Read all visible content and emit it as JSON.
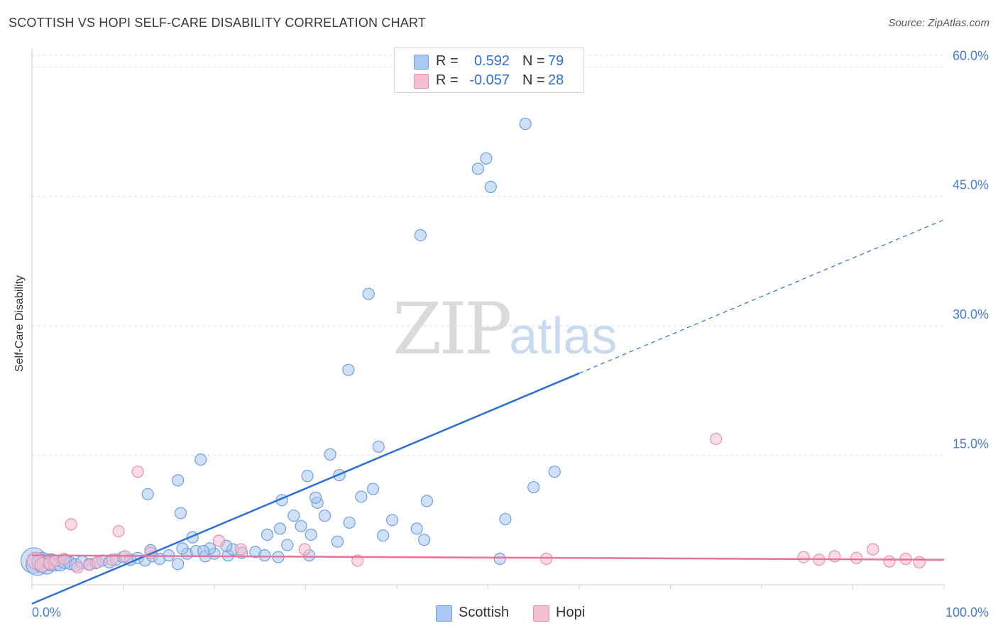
{
  "header": {
    "title": "SCOTTISH VS HOPI SELF-CARE DISABILITY CORRELATION CHART",
    "source": "Source: ZipAtlas.com"
  },
  "watermark": {
    "zip": "ZIP",
    "atlas": "atlas"
  },
  "colors": {
    "scottish_fill": "#aac8f0",
    "scottish_stroke": "#6d9ee0",
    "scottish_line": "#2a6fd6",
    "hopi_fill": "#f6bfd0",
    "hopi_stroke": "#e88fae",
    "hopi_line": "#e8729b",
    "grid": "#dddddd",
    "tick_text": "#4a7ccf"
  },
  "stats": [
    {
      "series": "Scottish",
      "r_label": "R =",
      "r_value": "0.592",
      "n_label": "N =",
      "n_value": "79"
    },
    {
      "series": "Hopi",
      "r_label": "R =",
      "r_value": "-0.057",
      "n_label": "N =",
      "n_value": "28"
    }
  ],
  "legend": [
    {
      "label": "Scottish"
    },
    {
      "label": "Hopi"
    }
  ],
  "chart_data": {
    "type": "scatter",
    "title": "SCOTTISH VS HOPI SELF-CARE DISABILITY CORRELATION CHART",
    "xlabel": "",
    "ylabel": "Self-Care Disability",
    "xlim": [
      0,
      100
    ],
    "ylim": [
      0,
      62
    ],
    "x_tick_labels": [
      "0.0%",
      "100.0%"
    ],
    "y_ticks": [
      15,
      30,
      45,
      60
    ],
    "y_tick_labels": [
      "15.0%",
      "30.0%",
      "45.0%",
      "60.0%"
    ],
    "grid": "horizontal dashed",
    "legend_position": "bottom-center",
    "series": [
      {
        "name": "Scottish",
        "trend": {
          "start": [
            0,
            -2.2
          ],
          "solid_end": [
            60,
            24.5
          ],
          "dashed_end": [
            100,
            42.3
          ]
        },
        "points": [
          {
            "x": 0.2,
            "y": 2.8,
            "s": 18
          },
          {
            "x": 0.6,
            "y": 2.4,
            "s": 16
          },
          {
            "x": 1.1,
            "y": 2.6,
            "s": 14
          },
          {
            "x": 1.6,
            "y": 2.3,
            "s": 13
          },
          {
            "x": 2.1,
            "y": 2.6,
            "s": 12
          },
          {
            "x": 2.6,
            "y": 2.5,
            "s": 11
          },
          {
            "x": 3.1,
            "y": 2.4,
            "s": 10
          },
          {
            "x": 3.6,
            "y": 2.7,
            "s": 10
          },
          {
            "x": 4.2,
            "y": 2.5,
            "s": 9
          },
          {
            "x": 4.8,
            "y": 2.3,
            "s": 9
          },
          {
            "x": 5.5,
            "y": 2.6,
            "s": 9
          },
          {
            "x": 6.3,
            "y": 2.4,
            "s": 8
          },
          {
            "x": 7.0,
            "y": 2.5,
            "s": 8
          },
          {
            "x": 7.7,
            "y": 2.8,
            "s": 8
          },
          {
            "x": 8.5,
            "y": 2.6,
            "s": 8
          },
          {
            "x": 9.2,
            "y": 2.9,
            "s": 8
          },
          {
            "x": 10.0,
            "y": 3.2,
            "s": 8
          },
          {
            "x": 10.8,
            "y": 2.9,
            "s": 8
          },
          {
            "x": 11.6,
            "y": 3.1,
            "s": 8
          },
          {
            "x": 12.4,
            "y": 2.8,
            "s": 8
          },
          {
            "x": 13.2,
            "y": 3.3,
            "s": 8
          },
          {
            "x": 14.0,
            "y": 3.0,
            "s": 8
          },
          {
            "x": 15.0,
            "y": 3.4,
            "s": 8
          },
          {
            "x": 16.0,
            "y": 2.4,
            "s": 8
          },
          {
            "x": 17.0,
            "y": 3.6,
            "s": 8
          },
          {
            "x": 18.0,
            "y": 3.9,
            "s": 8
          },
          {
            "x": 19.0,
            "y": 3.3,
            "s": 8
          },
          {
            "x": 20.0,
            "y": 3.6,
            "s": 8
          },
          {
            "x": 21.5,
            "y": 3.4,
            "s": 8
          },
          {
            "x": 23.0,
            "y": 3.7,
            "s": 8
          },
          {
            "x": 24.5,
            "y": 3.8,
            "s": 8
          },
          {
            "x": 25.5,
            "y": 3.4,
            "s": 8
          },
          {
            "x": 27.0,
            "y": 3.2,
            "s": 8
          },
          {
            "x": 13.0,
            "y": 4.0,
            "s": 8
          },
          {
            "x": 16.5,
            "y": 4.2,
            "s": 8
          },
          {
            "x": 19.5,
            "y": 4.2,
            "s": 8
          },
          {
            "x": 22.0,
            "y": 4.1,
            "s": 8
          },
          {
            "x": 28.0,
            "y": 4.6,
            "s": 8
          },
          {
            "x": 33.5,
            "y": 5.0,
            "s": 8
          },
          {
            "x": 38.5,
            "y": 5.7,
            "s": 8
          },
          {
            "x": 43.0,
            "y": 5.2,
            "s": 8
          },
          {
            "x": 17.6,
            "y": 5.5,
            "s": 8
          },
          {
            "x": 25.8,
            "y": 5.8,
            "s": 8
          },
          {
            "x": 16.3,
            "y": 8.3,
            "s": 8
          },
          {
            "x": 12.7,
            "y": 10.5,
            "s": 8
          },
          {
            "x": 16.0,
            "y": 12.1,
            "s": 8
          },
          {
            "x": 18.5,
            "y": 14.5,
            "s": 8
          },
          {
            "x": 18.8,
            "y": 3.9,
            "s": 8
          },
          {
            "x": 21.3,
            "y": 4.5,
            "s": 8
          },
          {
            "x": 27.2,
            "y": 6.5,
            "s": 8
          },
          {
            "x": 28.7,
            "y": 8.0,
            "s": 8
          },
          {
            "x": 29.5,
            "y": 6.8,
            "s": 8
          },
          {
            "x": 30.2,
            "y": 12.6,
            "s": 8
          },
          {
            "x": 30.4,
            "y": 3.4,
            "s": 8
          },
          {
            "x": 31.3,
            "y": 9.5,
            "s": 8
          },
          {
            "x": 32.1,
            "y": 8.0,
            "s": 8
          },
          {
            "x": 31.1,
            "y": 10.1,
            "s": 8
          },
          {
            "x": 34.8,
            "y": 7.2,
            "s": 8
          },
          {
            "x": 36.1,
            "y": 10.2,
            "s": 8
          },
          {
            "x": 37.4,
            "y": 11.1,
            "s": 8
          },
          {
            "x": 38.0,
            "y": 16.0,
            "s": 8
          },
          {
            "x": 39.5,
            "y": 7.5,
            "s": 8
          },
          {
            "x": 30.6,
            "y": 5.8,
            "s": 8
          },
          {
            "x": 42.2,
            "y": 6.5,
            "s": 8
          },
          {
            "x": 43.3,
            "y": 9.7,
            "s": 8
          },
          {
            "x": 33.7,
            "y": 12.7,
            "s": 8
          },
          {
            "x": 27.4,
            "y": 9.8,
            "s": 8
          },
          {
            "x": 32.7,
            "y": 15.1,
            "s": 8
          },
          {
            "x": 34.7,
            "y": 24.9,
            "s": 8
          },
          {
            "x": 36.9,
            "y": 33.7,
            "s": 8
          },
          {
            "x": 42.6,
            "y": 40.5,
            "s": 8
          },
          {
            "x": 50.3,
            "y": 46.1,
            "s": 8
          },
          {
            "x": 48.9,
            "y": 48.2,
            "s": 8
          },
          {
            "x": 49.8,
            "y": 49.4,
            "s": 8
          },
          {
            "x": 54.1,
            "y": 53.4,
            "s": 8
          },
          {
            "x": 51.9,
            "y": 7.6,
            "s": 8
          },
          {
            "x": 55.0,
            "y": 11.3,
            "s": 8
          },
          {
            "x": 57.3,
            "y": 13.1,
            "s": 8
          },
          {
            "x": 51.3,
            "y": 3.0,
            "s": 8
          }
        ]
      },
      {
        "name": "Hopi",
        "trend": {
          "start": [
            0,
            3.4
          ],
          "end": [
            100,
            2.9
          ]
        },
        "points": [
          {
            "x": 0.4,
            "y": 2.8,
            "s": 12
          },
          {
            "x": 1.1,
            "y": 2.3,
            "s": 10
          },
          {
            "x": 2.0,
            "y": 2.5,
            "s": 9
          },
          {
            "x": 2.6,
            "y": 2.8,
            "s": 8
          },
          {
            "x": 3.5,
            "y": 3.0,
            "s": 8
          },
          {
            "x": 5.0,
            "y": 2.0,
            "s": 8
          },
          {
            "x": 6.3,
            "y": 2.3,
            "s": 8
          },
          {
            "x": 7.2,
            "y": 2.6,
            "s": 8
          },
          {
            "x": 8.8,
            "y": 2.9,
            "s": 8
          },
          {
            "x": 10.2,
            "y": 3.3,
            "s": 8
          },
          {
            "x": 4.3,
            "y": 7.0,
            "s": 8
          },
          {
            "x": 9.5,
            "y": 6.2,
            "s": 8
          },
          {
            "x": 11.6,
            "y": 13.1,
            "s": 8
          },
          {
            "x": 13.0,
            "y": 3.7,
            "s": 8
          },
          {
            "x": 20.5,
            "y": 5.1,
            "s": 8
          },
          {
            "x": 22.9,
            "y": 4.1,
            "s": 8
          },
          {
            "x": 29.9,
            "y": 4.1,
            "s": 8
          },
          {
            "x": 35.7,
            "y": 2.8,
            "s": 8
          },
          {
            "x": 56.4,
            "y": 3.0,
            "s": 8
          },
          {
            "x": 75.0,
            "y": 16.9,
            "s": 8
          },
          {
            "x": 84.6,
            "y": 3.2,
            "s": 8
          },
          {
            "x": 86.3,
            "y": 2.9,
            "s": 8
          },
          {
            "x": 88.0,
            "y": 3.3,
            "s": 8
          },
          {
            "x": 90.4,
            "y": 3.1,
            "s": 8
          },
          {
            "x": 92.2,
            "y": 4.1,
            "s": 8
          },
          {
            "x": 94.0,
            "y": 2.7,
            "s": 8
          },
          {
            "x": 95.8,
            "y": 3.0,
            "s": 8
          },
          {
            "x": 97.3,
            "y": 2.6,
            "s": 8
          }
        ]
      }
    ]
  }
}
